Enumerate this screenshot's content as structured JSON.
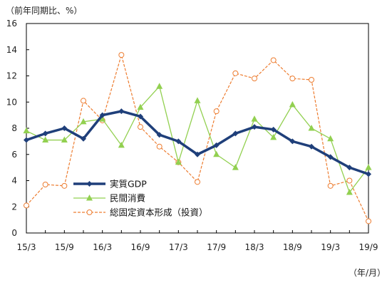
{
  "chart_data": {
    "type": "line",
    "y_unit_label": "（前年同期比、%）",
    "x_unit_label": "（年/月）",
    "ylim": [
      0,
      16
    ],
    "yticks": [
      0,
      2,
      4,
      6,
      8,
      10,
      12,
      14,
      16
    ],
    "grid": false,
    "legend_position": "lower-left",
    "categories": [
      "15/3",
      "15/6",
      "15/9",
      "15/12",
      "16/3",
      "16/6",
      "16/9",
      "16/12",
      "17/3",
      "17/6",
      "17/9",
      "17/12",
      "18/3",
      "18/6",
      "18/9",
      "18/12",
      "19/3",
      "19/6",
      "19/9"
    ],
    "xtick_labels": [
      "15/3",
      "15/9",
      "16/3",
      "16/9",
      "17/3",
      "17/9",
      "18/3",
      "18/9",
      "19/3",
      "19/9"
    ],
    "series": [
      {
        "name": "実質GDP",
        "color": "#1f3f7a",
        "style": "solid-thick",
        "marker": "diamond",
        "values": [
          7.1,
          7.6,
          8.0,
          7.2,
          9.0,
          9.3,
          8.9,
          7.5,
          7.0,
          6.0,
          6.7,
          7.6,
          8.1,
          7.9,
          7.0,
          6.6,
          5.8,
          5.0,
          4.5
        ]
      },
      {
        "name": "民間消費",
        "color": "#92d050",
        "style": "solid-thin",
        "marker": "triangle",
        "values": [
          7.8,
          7.1,
          7.1,
          8.5,
          8.7,
          6.7,
          9.6,
          11.2,
          5.4,
          10.1,
          6.0,
          5.0,
          8.7,
          7.3,
          9.8,
          8.0,
          7.2,
          3.1,
          5.0
        ]
      },
      {
        "name": "総固定資本形成（投資）",
        "color": "#ed7d31",
        "style": "dashed",
        "marker": "circle-open",
        "values": [
          2.1,
          3.7,
          3.6,
          10.1,
          8.6,
          13.6,
          8.1,
          6.6,
          5.4,
          3.9,
          9.3,
          12.2,
          11.8,
          13.2,
          11.8,
          11.7,
          3.6,
          4.0,
          0.9
        ]
      }
    ]
  }
}
